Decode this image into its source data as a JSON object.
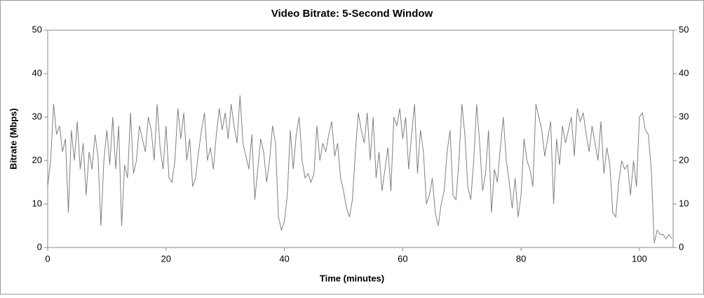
{
  "chart_data": {
    "type": "line",
    "title": "Video Bitrate: 5-Second Window",
    "x_label": "Time (minutes)",
    "y_label": "Bitrate (Mbps)",
    "xlim": [
      0,
      105.7
    ],
    "ylim": [
      0,
      50
    ],
    "xticks": [
      0,
      20,
      40,
      60,
      80,
      100
    ],
    "yticks": [
      0,
      10,
      20,
      30,
      40,
      50
    ],
    "grid": false,
    "x": [
      0,
      0.5,
      1,
      1.5,
      2,
      2.5,
      3,
      3.5,
      4,
      4.5,
      5,
      5.5,
      6,
      6.5,
      7,
      7.5,
      8,
      8.5,
      9,
      9.5,
      10,
      10.5,
      11,
      11.5,
      12,
      12.5,
      13,
      13.5,
      14,
      14.5,
      15,
      15.5,
      16,
      16.5,
      17,
      17.5,
      18,
      18.5,
      19,
      19.5,
      20,
      20.5,
      21,
      21.5,
      22,
      22.5,
      23,
      23.5,
      24,
      24.5,
      25,
      25.5,
      26,
      26.5,
      27,
      27.5,
      28,
      28.5,
      29,
      29.5,
      30,
      30.5,
      31,
      31.5,
      32,
      32.5,
      33,
      33.5,
      34,
      34.5,
      35,
      35.5,
      36,
      36.5,
      37,
      37.5,
      38,
      38.5,
      39,
      39.5,
      40,
      40.5,
      41,
      41.5,
      42,
      42.5,
      43,
      43.5,
      44,
      44.5,
      45,
      45.5,
      46,
      46.5,
      47,
      47.5,
      48,
      48.5,
      49,
      49.5,
      50,
      50.5,
      51,
      51.5,
      52,
      52.5,
      53,
      53.5,
      54,
      54.5,
      55,
      55.5,
      56,
      56.5,
      57,
      57.5,
      58,
      58.5,
      59,
      59.5,
      60,
      60.5,
      61,
      61.5,
      62,
      62.5,
      63,
      63.5,
      64,
      64.5,
      65,
      65.5,
      66,
      66.5,
      67,
      67.5,
      68,
      68.5,
      69,
      69.5,
      70,
      70.5,
      71,
      71.5,
      72,
      72.5,
      73,
      73.5,
      74,
      74.5,
      75,
      75.5,
      76,
      76.5,
      77,
      77.5,
      78,
      78.5,
      79,
      79.5,
      80,
      80.5,
      81,
      81.5,
      82,
      82.5,
      83,
      83.5,
      84,
      84.5,
      85,
      85.5,
      86,
      86.5,
      87,
      87.5,
      88,
      88.5,
      89,
      89.5,
      90,
      90.5,
      91,
      91.5,
      92,
      92.5,
      93,
      93.5,
      94,
      94.5,
      95,
      95.5,
      96,
      96.5,
      97,
      97.5,
      98,
      98.5,
      99,
      99.5,
      100,
      100.5,
      101,
      101.5,
      102,
      102.5,
      103,
      103.5,
      104,
      104.5,
      105,
      105.5
    ],
    "series": [
      {
        "color": "#808080",
        "values": [
          14,
          20,
          33,
          26,
          28,
          22,
          25,
          8,
          27,
          20,
          29,
          18,
          24,
          12,
          22,
          18,
          26,
          21,
          5,
          20,
          27,
          19,
          30,
          18,
          28,
          5,
          19,
          16,
          31,
          17,
          20,
          28,
          25,
          22,
          30,
          27,
          20,
          33,
          23,
          18,
          28,
          16,
          15,
          20,
          32,
          25,
          31,
          20,
          25,
          14,
          16,
          22,
          27,
          31,
          20,
          23,
          18,
          26,
          32,
          27,
          31,
          25,
          33,
          28,
          24,
          35,
          24,
          21,
          18,
          26,
          11,
          18,
          25,
          22,
          15,
          20,
          28,
          24,
          7,
          4,
          6,
          12,
          27,
          18,
          26,
          30,
          20,
          16,
          17,
          15,
          17,
          28,
          20,
          24,
          22,
          26,
          29,
          21,
          24,
          16,
          13,
          9,
          7,
          11,
          22,
          31,
          27,
          24,
          31,
          20,
          30,
          16,
          22,
          13,
          18,
          23,
          13,
          30,
          28,
          32,
          25,
          30,
          18,
          26,
          33,
          17,
          27,
          22,
          10,
          12,
          16,
          8,
          5,
          10,
          13,
          22,
          27,
          12,
          11,
          20,
          33,
          26,
          14,
          11,
          20,
          33,
          24,
          13,
          17,
          27,
          8,
          18,
          15,
          23,
          30,
          20,
          15,
          9,
          16,
          7,
          12,
          25,
          20,
          18,
          14,
          33,
          30,
          27,
          21,
          25,
          29,
          10,
          25,
          19,
          28,
          24,
          27,
          30,
          21,
          32,
          29,
          31,
          26,
          22,
          28,
          24,
          20,
          29,
          17,
          23,
          19,
          8,
          7,
          15,
          20,
          18,
          19,
          12,
          20,
          14,
          30,
          31,
          27,
          26,
          18,
          1,
          4,
          3,
          3,
          2,
          3,
          2
        ]
      }
    ]
  }
}
